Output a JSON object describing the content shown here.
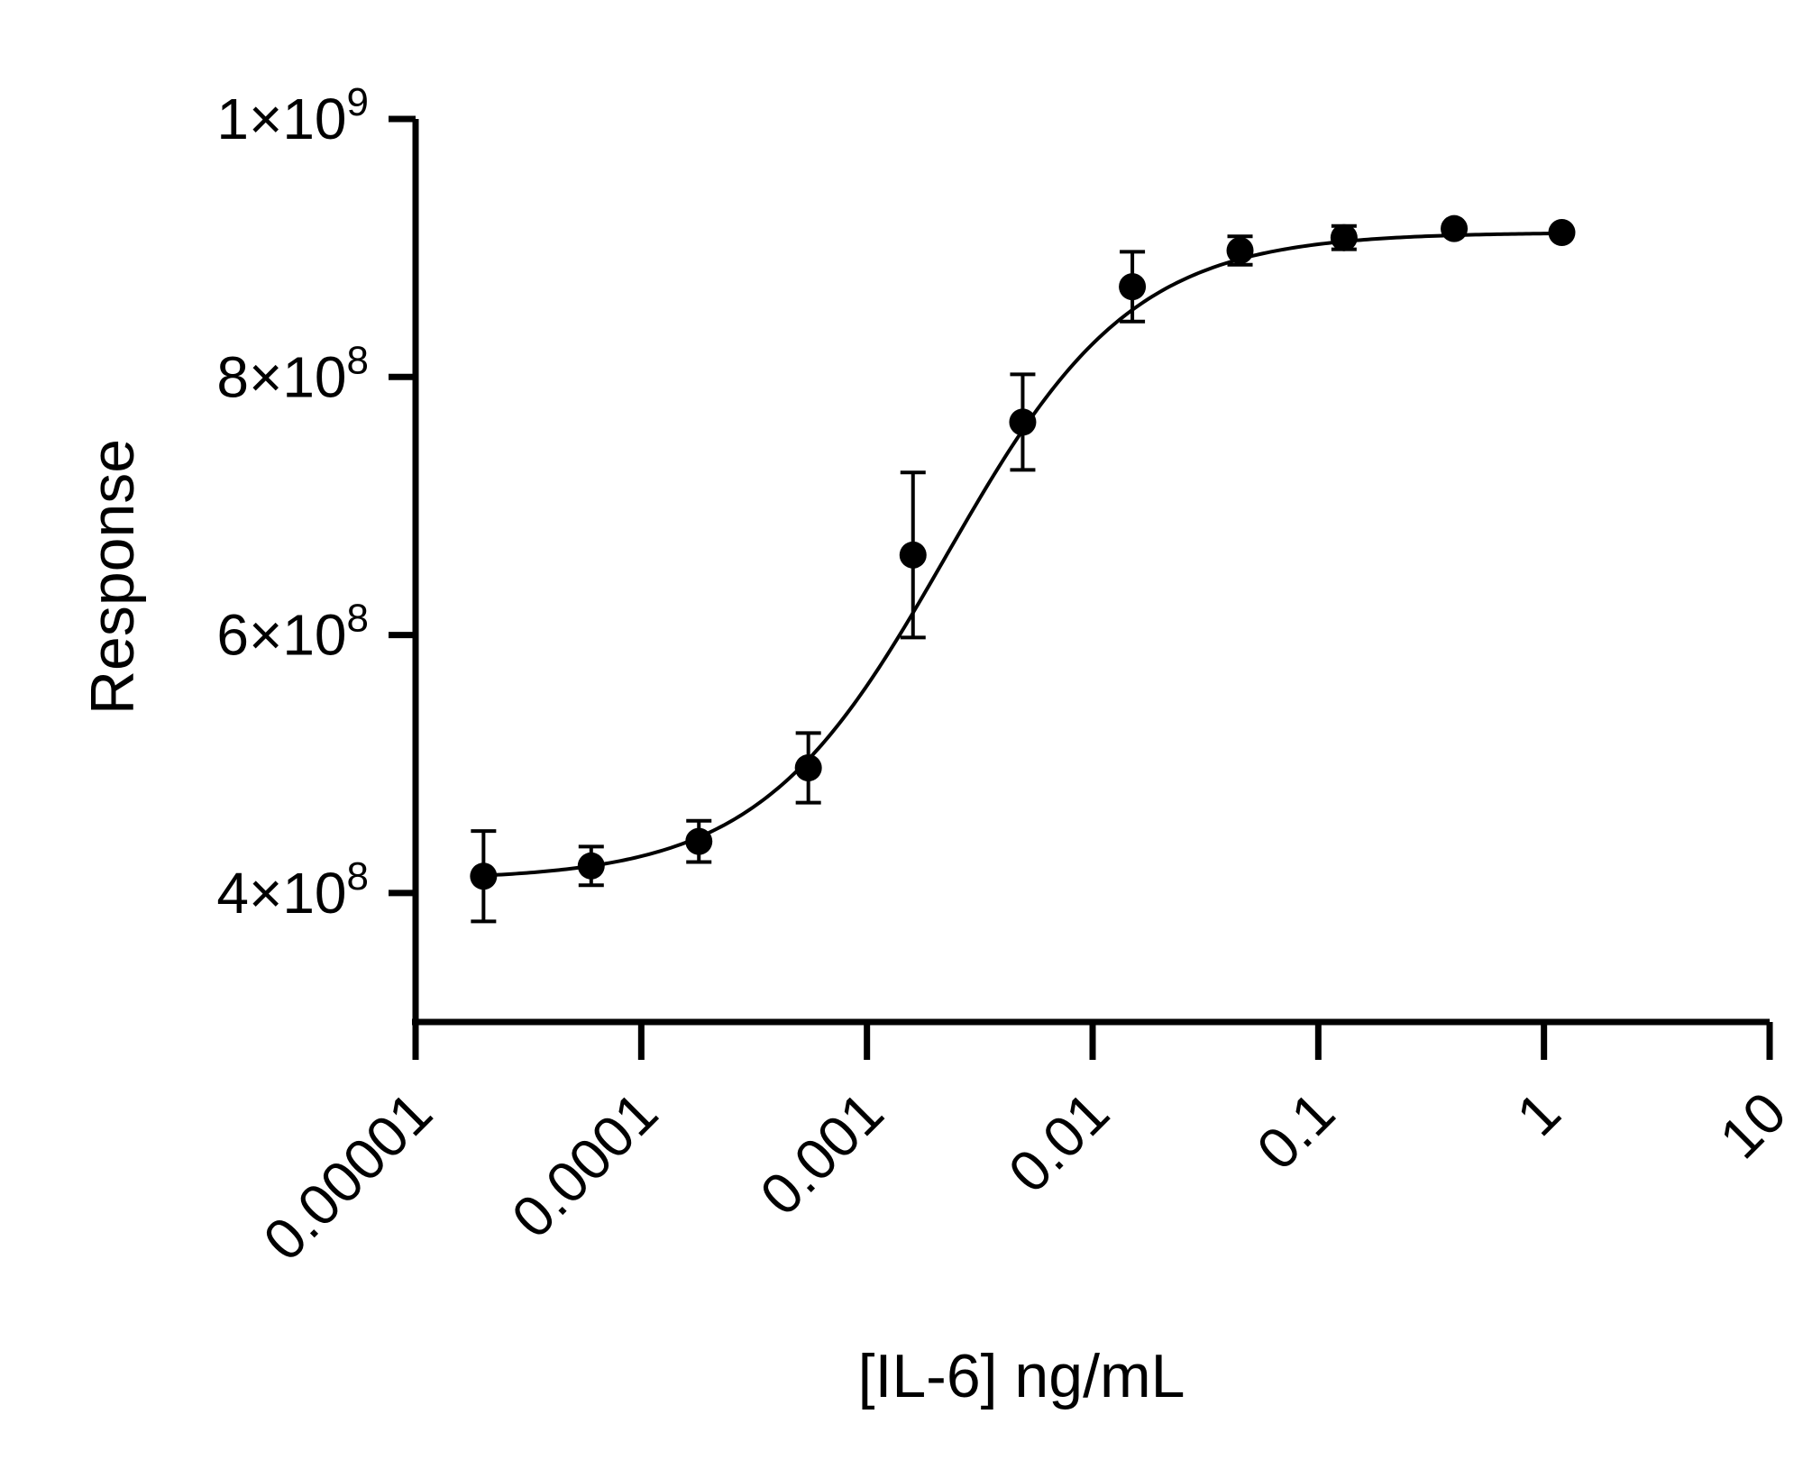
{
  "chart_data": {
    "type": "scatter",
    "xlabel": "[IL-6] ng/mL",
    "ylabel": "Response",
    "x_scale": "log",
    "xlim": [
      1e-05,
      10
    ],
    "ylim": [
      300000000,
      1000000000
    ],
    "x_ticks": [
      {
        "value": 1e-05,
        "label": "0.00001"
      },
      {
        "value": 0.0001,
        "label": "0.0001"
      },
      {
        "value": 0.001,
        "label": "0.001"
      },
      {
        "value": 0.01,
        "label": "0.01"
      },
      {
        "value": 0.1,
        "label": "0.1"
      },
      {
        "value": 1,
        "label": "1"
      },
      {
        "value": 10,
        "label": "10"
      }
    ],
    "y_ticks": [
      {
        "value": 400000000,
        "mantissa": "4×10",
        "exponent": "8"
      },
      {
        "value": 600000000,
        "mantissa": "6×10",
        "exponent": "8"
      },
      {
        "value": 800000000,
        "mantissa": "8×10",
        "exponent": "8"
      },
      {
        "value": 1000000000,
        "mantissa": "1×10",
        "exponent": "9"
      }
    ],
    "grid": false,
    "series": [
      {
        "points": [
          {
            "x": 2e-05,
            "y": 413000000,
            "err": 35000000
          },
          {
            "x": 6e-05,
            "y": 421000000,
            "err": 15000000
          },
          {
            "x": 0.00018,
            "y": 440000000,
            "err": 16000000
          },
          {
            "x": 0.00055,
            "y": 497000000,
            "err": 27000000
          },
          {
            "x": 0.0016,
            "y": 662000000,
            "err": 64000000
          },
          {
            "x": 0.0049,
            "y": 765000000,
            "err": 37000000
          },
          {
            "x": 0.015,
            "y": 870000000,
            "err": 27000000
          },
          {
            "x": 0.045,
            "y": 898000000,
            "err": 11000000
          },
          {
            "x": 0.13,
            "y": 908000000,
            "err": 9000000
          },
          {
            "x": 0.4,
            "y": 915000000,
            "err": 0
          },
          {
            "x": 1.2,
            "y": 912000000,
            "err": 0
          }
        ],
        "fit": {
          "model": "4PL",
          "bottom": 410000000,
          "top": 912000000,
          "logEC50": -2.65,
          "hill": 1.05
        }
      }
    ],
    "colors": {
      "marker": "#000000",
      "line": "#000000"
    }
  }
}
